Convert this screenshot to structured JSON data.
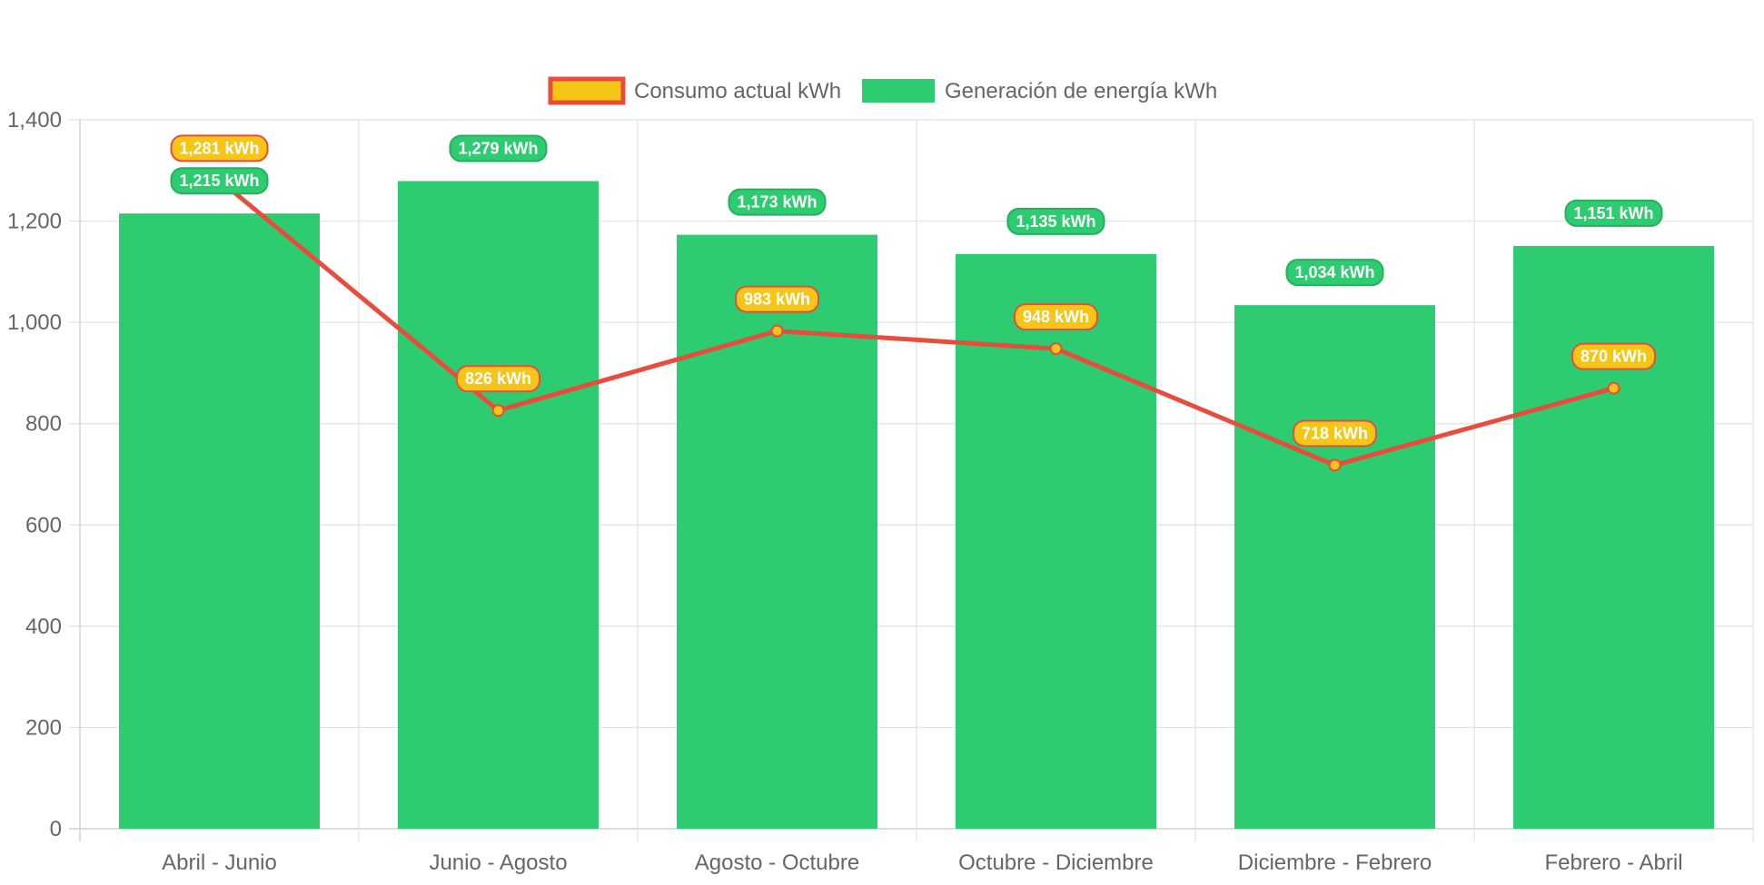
{
  "chart_data": {
    "type": "bar",
    "categories": [
      "Abril - Junio",
      "Junio - Agosto",
      "Agosto - Octubre",
      "Octubre - Diciembre",
      "Diciembre - Febrero",
      "Febrero - Abril"
    ],
    "series": [
      {
        "name": "Consumo actual kWh",
        "type": "line",
        "values": [
          1281,
          826,
          983,
          948,
          718,
          870
        ],
        "labels": [
          "1,281 kWh",
          "826 kWh",
          "983 kWh",
          "948 kWh",
          "718 kWh",
          "870 kWh"
        ],
        "color": "#e74c3c",
        "fill": "#f5c518"
      },
      {
        "name": "Generación de energía kWh",
        "type": "bar",
        "values": [
          1215,
          1279,
          1173,
          1135,
          1034,
          1151
        ],
        "labels": [
          "1,215 kWh",
          "1,279 kWh",
          "1,173 kWh",
          "1,135 kWh",
          "1,034 kWh",
          "1,151 kWh"
        ],
        "color": "#2ecc71",
        "border": "#27ae60"
      }
    ],
    "yticks": [
      "0",
      "200",
      "400",
      "600",
      "800",
      "1,000",
      "1,200",
      "1,400"
    ],
    "ylim": [
      0,
      1400
    ],
    "grid": true,
    "legend_position": "top"
  }
}
